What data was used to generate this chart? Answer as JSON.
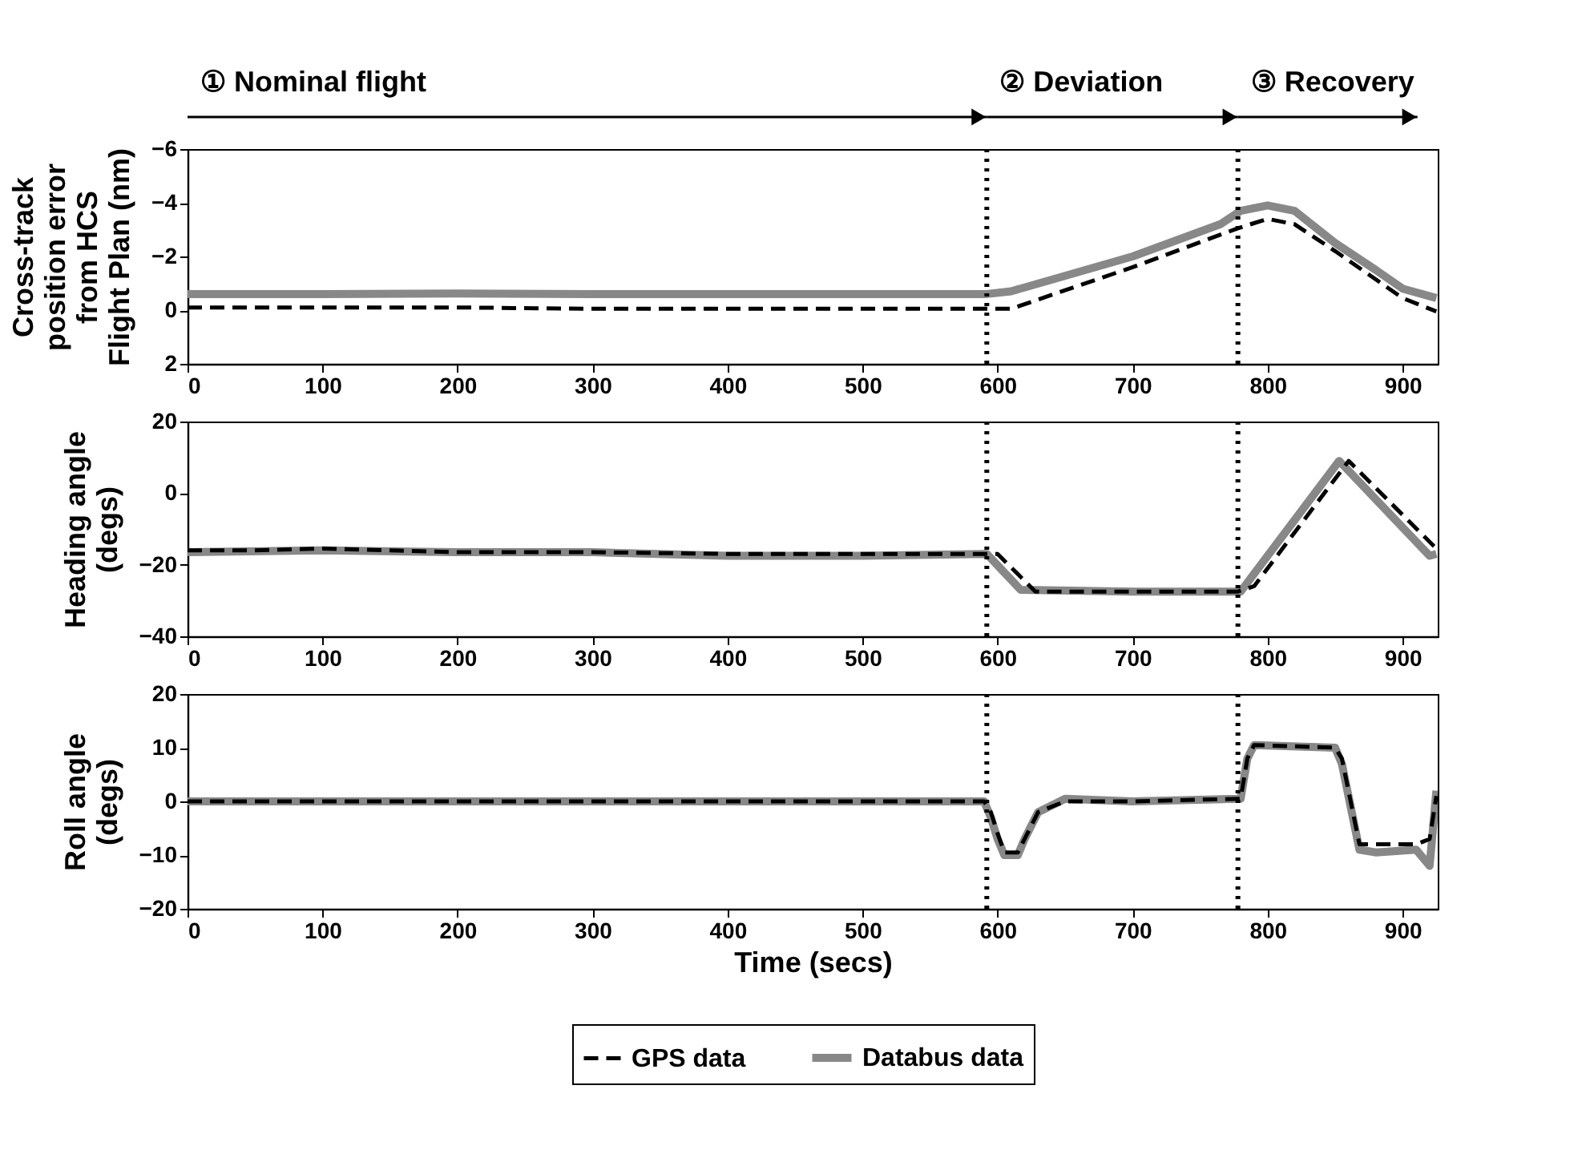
{
  "chart_data": [
    {
      "type": "line",
      "ylabel": "Cross-track\nposition error\nfrom HCS\nFlight Plan (nm)",
      "xlim": [
        0,
        926
      ],
      "xticks": [
        0,
        100,
        200,
        300,
        400,
        500,
        600,
        700,
        800,
        900
      ],
      "ylim": [
        2,
        -6
      ],
      "yticks": [
        -6,
        -4,
        -2,
        0,
        2
      ],
      "grid": false,
      "legend": "bottom",
      "annotations": [
        "① Nominal flight",
        "② Deviation",
        "③ Recovery"
      ],
      "ref_lines": [
        {
          "axis": "x",
          "value": 592,
          "line_style": "dotted",
          "color": "#000000"
        },
        {
          "axis": "x",
          "value": 778,
          "line_style": "dotted",
          "color": "#000000"
        }
      ],
      "series": [
        {
          "name": "GPS data",
          "color": "#000000",
          "line_style": "dashed",
          "x": [
            0,
            100,
            200,
            300,
            400,
            500,
            592,
            610,
            700,
            778,
            800,
            820,
            850,
            880,
            900,
            925
          ],
          "values": [
            -0.1,
            -0.1,
            -0.1,
            -0.05,
            -0.05,
            -0.05,
            -0.05,
            -0.05,
            -1.6,
            -3.05,
            -3.4,
            -3.2,
            -2.2,
            -1.15,
            -0.45,
            0.05
          ]
        },
        {
          "name": "Databus data",
          "color": "#888888",
          "line_style": "solid",
          "x": [
            0,
            100,
            200,
            300,
            400,
            500,
            592,
            610,
            700,
            765,
            780,
            800,
            820,
            850,
            880,
            900,
            925
          ],
          "values": [
            -0.6,
            -0.6,
            -0.62,
            -0.6,
            -0.6,
            -0.6,
            -0.6,
            -0.7,
            -2.0,
            -3.2,
            -3.7,
            -3.9,
            -3.7,
            -2.5,
            -1.5,
            -0.8,
            -0.45
          ]
        }
      ]
    },
    {
      "type": "line",
      "ylabel": "Heading angle\n(degs)",
      "xlim": [
        0,
        926
      ],
      "xticks": [
        0,
        100,
        200,
        300,
        400,
        500,
        600,
        700,
        800,
        900
      ],
      "ylim": [
        -40,
        20
      ],
      "yticks": [
        -40,
        -20,
        0,
        20
      ],
      "grid": false,
      "legend": "bottom",
      "ref_lines": [
        {
          "axis": "x",
          "value": 592,
          "line_style": "dotted",
          "color": "#000000"
        },
        {
          "axis": "x",
          "value": 778,
          "line_style": "dotted",
          "color": "#000000"
        }
      ],
      "series": [
        {
          "color": "#000000",
          "line_style": "dashed",
          "x": [
            0,
            50,
            100,
            150,
            200,
            300,
            400,
            500,
            592,
            600,
            628,
            700,
            778,
            790,
            860,
            925
          ],
          "values": [
            -16,
            -16,
            -15.5,
            -16,
            -16.5,
            -16.5,
            -17,
            -17,
            -17,
            -17,
            -27.5,
            -27.5,
            -27.5,
            -26,
            9,
            -15.5
          ]
        },
        {
          "color": "#888888",
          "line_style": "solid",
          "x": [
            0,
            100,
            200,
            300,
            400,
            500,
            592,
            617,
            700,
            780,
            853,
            920,
            925
          ],
          "values": [
            -16.5,
            -16,
            -16.5,
            -16.5,
            -17.5,
            -17.5,
            -17,
            -27,
            -27.5,
            -27.5,
            9,
            -17.5,
            -17
          ]
        }
      ]
    },
    {
      "type": "line",
      "xlabel": "Time (secs)",
      "ylabel": "Roll angle\n(degs)",
      "xlim": [
        0,
        926
      ],
      "xticks": [
        0,
        100,
        200,
        300,
        400,
        500,
        600,
        700,
        800,
        900
      ],
      "ylim": [
        -20,
        20
      ],
      "yticks": [
        -20,
        -10,
        0,
        10,
        20
      ],
      "grid": false,
      "legend": "bottom",
      "ref_lines": [
        {
          "axis": "x",
          "value": 592,
          "line_style": "dotted",
          "color": "#000000"
        },
        {
          "axis": "x",
          "value": 778,
          "line_style": "dotted",
          "color": "#000000"
        }
      ],
      "series": [
        {
          "color": "#000000",
          "line_style": "dashed",
          "x": [
            0,
            100,
            200,
            300,
            400,
            500,
            590,
            595,
            600,
            605,
            615,
            620,
            630,
            650,
            700,
            780,
            785,
            790,
            850,
            855,
            868,
            880,
            910,
            920,
            925
          ],
          "values": [
            0,
            0,
            0,
            0,
            0,
            0,
            0,
            -2,
            -6,
            -9.5,
            -9.5,
            -7,
            -2,
            0,
            0,
            0.5,
            8,
            10.5,
            10,
            8,
            -8,
            -8,
            -8,
            -7,
            1
          ]
        },
        {
          "color": "#888888",
          "line_style": "solid",
          "x": [
            0,
            100,
            200,
            300,
            400,
            500,
            590,
            595,
            600,
            605,
            615,
            620,
            630,
            650,
            700,
            780,
            785,
            790,
            850,
            855,
            868,
            880,
            910,
            920,
            925
          ],
          "values": [
            0,
            0,
            0,
            0,
            0,
            0,
            0,
            -3,
            -7,
            -10,
            -10,
            -7,
            -2,
            0.5,
            0,
            0.5,
            8,
            10.5,
            10,
            7,
            -9,
            -9.5,
            -9,
            -12,
            2
          ]
        }
      ]
    }
  ]
}
